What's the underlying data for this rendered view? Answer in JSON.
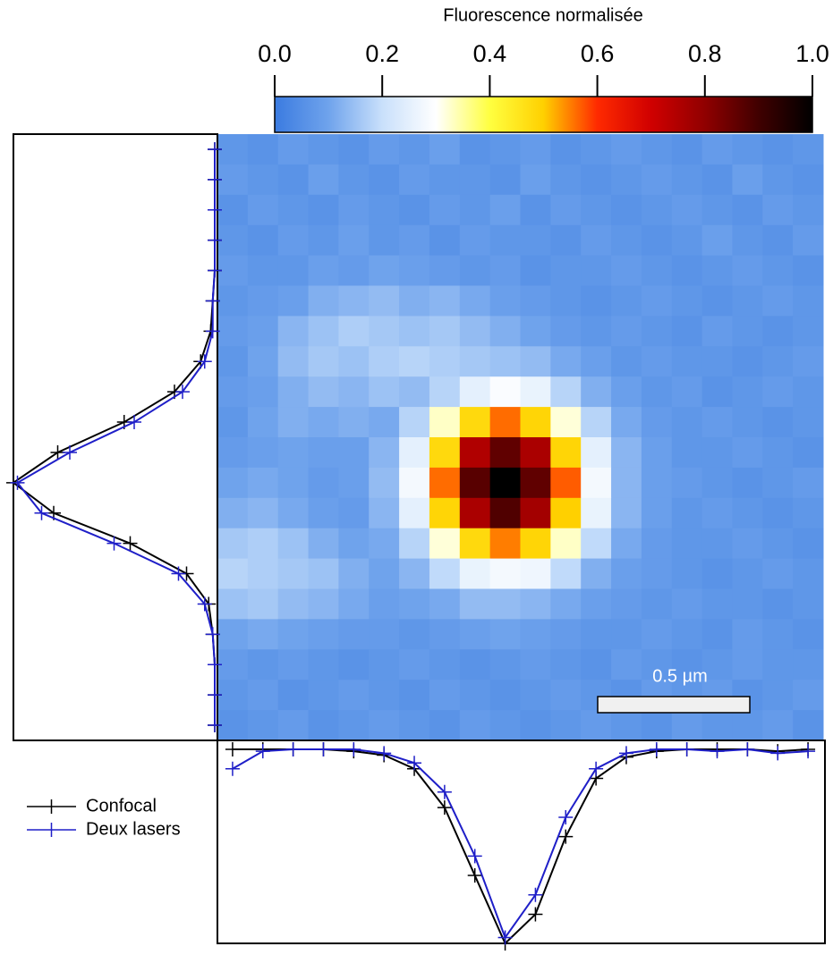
{
  "chart_data": [
    {
      "type": "heatmap",
      "colorbar_label": "Fluorescence normalisée",
      "colorbar_lim": [
        0,
        1
      ],
      "colorbar_ticks": [
        {
          "value": 0,
          "label": "0.0"
        },
        0.2,
        0.4,
        0.6,
        0.8,
        {
          "value": 1,
          "label": "1.0"
        }
      ],
      "colormap": [
        "#3b7be0",
        "#6fa3ec",
        "#c9e0fb",
        "#ffffff",
        "#ffff40",
        "#ffd000",
        "#ff2a00",
        "#d00000",
        "#900000",
        "#400000",
        "#000000"
      ],
      "annotation": "0.5 µm",
      "values": [
        [
          0.07,
          0.06,
          0.08,
          0.07,
          0.06,
          0.08,
          0.07,
          0.09,
          0.06,
          0.07,
          0.08,
          0.06,
          0.07,
          0.08,
          0.07,
          0.06,
          0.08,
          0.07,
          0.06,
          0.07
        ],
        [
          0.08,
          0.07,
          0.06,
          0.09,
          0.07,
          0.06,
          0.08,
          0.07,
          0.07,
          0.06,
          0.09,
          0.07,
          0.06,
          0.07,
          0.08,
          0.07,
          0.06,
          0.09,
          0.07,
          0.06
        ],
        [
          0.06,
          0.08,
          0.07,
          0.06,
          0.08,
          0.07,
          0.06,
          0.08,
          0.07,
          0.09,
          0.06,
          0.08,
          0.07,
          0.06,
          0.07,
          0.08,
          0.07,
          0.06,
          0.08,
          0.07
        ],
        [
          0.07,
          0.06,
          0.08,
          0.07,
          0.09,
          0.07,
          0.08,
          0.06,
          0.08,
          0.07,
          0.07,
          0.06,
          0.08,
          0.07,
          0.06,
          0.07,
          0.09,
          0.07,
          0.06,
          0.08
        ],
        [
          0.08,
          0.07,
          0.07,
          0.09,
          0.08,
          0.1,
          0.09,
          0.08,
          0.07,
          0.08,
          0.06,
          0.07,
          0.07,
          0.08,
          0.07,
          0.06,
          0.07,
          0.08,
          0.07,
          0.06
        ],
        [
          0.07,
          0.08,
          0.09,
          0.12,
          0.13,
          0.14,
          0.12,
          0.13,
          0.11,
          0.09,
          0.08,
          0.07,
          0.06,
          0.07,
          0.08,
          0.07,
          0.06,
          0.07,
          0.08,
          0.07
        ],
        [
          0.08,
          0.09,
          0.13,
          0.15,
          0.17,
          0.16,
          0.15,
          0.16,
          0.14,
          0.12,
          0.1,
          0.08,
          0.07,
          0.08,
          0.07,
          0.06,
          0.08,
          0.07,
          0.06,
          0.07
        ],
        [
          0.07,
          0.1,
          0.14,
          0.16,
          0.15,
          0.17,
          0.18,
          0.17,
          0.16,
          0.15,
          0.14,
          0.11,
          0.09,
          0.07,
          0.08,
          0.07,
          0.07,
          0.06,
          0.07,
          0.08
        ],
        [
          0.08,
          0.09,
          0.12,
          0.14,
          0.13,
          0.15,
          0.14,
          0.18,
          0.25,
          0.29,
          0.26,
          0.18,
          0.12,
          0.09,
          0.07,
          0.08,
          0.06,
          0.07,
          0.08,
          0.07
        ],
        [
          0.07,
          0.1,
          0.12,
          0.11,
          0.12,
          0.11,
          0.18,
          0.33,
          0.48,
          0.56,
          0.49,
          0.32,
          0.18,
          0.11,
          0.08,
          0.07,
          0.08,
          0.07,
          0.06,
          0.07
        ],
        [
          0.08,
          0.09,
          0.1,
          0.09,
          0.09,
          0.13,
          0.25,
          0.48,
          0.75,
          0.86,
          0.76,
          0.49,
          0.25,
          0.13,
          0.09,
          0.07,
          0.07,
          0.08,
          0.07,
          0.06
        ],
        [
          0.1,
          0.11,
          0.1,
          0.08,
          0.09,
          0.14,
          0.28,
          0.56,
          0.87,
          1.0,
          0.86,
          0.57,
          0.28,
          0.13,
          0.09,
          0.08,
          0.07,
          0.06,
          0.07,
          0.08
        ],
        [
          0.12,
          0.13,
          0.11,
          0.09,
          0.08,
          0.13,
          0.25,
          0.49,
          0.76,
          0.88,
          0.77,
          0.5,
          0.26,
          0.13,
          0.09,
          0.07,
          0.08,
          0.07,
          0.06,
          0.07
        ],
        [
          0.16,
          0.17,
          0.15,
          0.12,
          0.1,
          0.11,
          0.18,
          0.32,
          0.48,
          0.55,
          0.49,
          0.33,
          0.19,
          0.11,
          0.08,
          0.07,
          0.07,
          0.08,
          0.07,
          0.06
        ],
        [
          0.18,
          0.17,
          0.16,
          0.15,
          0.12,
          0.1,
          0.13,
          0.19,
          0.26,
          0.28,
          0.27,
          0.19,
          0.12,
          0.09,
          0.08,
          0.07,
          0.06,
          0.07,
          0.08,
          0.07
        ],
        [
          0.15,
          0.16,
          0.14,
          0.13,
          0.11,
          0.09,
          0.1,
          0.11,
          0.14,
          0.14,
          0.13,
          0.11,
          0.09,
          0.08,
          0.07,
          0.08,
          0.07,
          0.07,
          0.06,
          0.07
        ],
        [
          0.1,
          0.11,
          0.1,
          0.09,
          0.08,
          0.08,
          0.07,
          0.08,
          0.09,
          0.1,
          0.09,
          0.08,
          0.07,
          0.07,
          0.08,
          0.07,
          0.06,
          0.08,
          0.07,
          0.06
        ],
        [
          0.08,
          0.07,
          0.08,
          0.07,
          0.06,
          0.07,
          0.08,
          0.07,
          0.06,
          0.07,
          0.08,
          0.07,
          0.06,
          0.08,
          0.07,
          0.06,
          0.07,
          0.08,
          0.07,
          0.07
        ],
        [
          0.07,
          0.08,
          0.06,
          0.07,
          0.08,
          0.07,
          0.06,
          0.08,
          0.07,
          0.06,
          0.07,
          0.08,
          0.07,
          0.06,
          0.08,
          0.07,
          0.08,
          0.06,
          0.07,
          0.08
        ],
        [
          0.06,
          0.07,
          0.08,
          0.06,
          0.07,
          0.08,
          0.07,
          0.06,
          0.08,
          0.07,
          0.06,
          0.07,
          0.08,
          0.07,
          0.06,
          0.08,
          0.07,
          0.07,
          0.08,
          0.06
        ]
      ]
    },
    {
      "type": "profile",
      "orientation": "vertical",
      "xlim": [
        0,
        1
      ],
      "series": [
        {
          "name": "Confocal",
          "color": "#000000",
          "values": [
            0,
            0,
            0,
            0,
            0,
            0.01,
            0.02,
            0.07,
            0.2,
            0.45,
            0.78,
            1.0,
            0.8,
            0.42,
            0.14,
            0.03,
            0.01,
            0,
            0,
            0
          ]
        },
        {
          "name": "Deux lasers",
          "color": "#1f1fc8",
          "values": [
            0,
            0,
            0,
            0,
            0,
            0.01,
            0.01,
            0.05,
            0.16,
            0.4,
            0.72,
            0.98,
            0.86,
            0.5,
            0.18,
            0.05,
            0.01,
            0,
            0,
            0
          ]
        }
      ]
    },
    {
      "type": "profile",
      "orientation": "horizontal",
      "ylim": [
        0,
        1
      ],
      "series": [
        {
          "color": "#000000",
          "values": [
            0,
            0,
            0,
            0,
            0.01,
            0.03,
            0.1,
            0.3,
            0.65,
            1.0,
            0.85,
            0.45,
            0.15,
            0.04,
            0.01,
            0,
            0,
            0,
            0.01,
            0
          ]
        },
        {
          "color": "#1f1fc8",
          "values": [
            0.1,
            0.01,
            0,
            0,
            0,
            0.02,
            0.07,
            0.22,
            0.55,
            0.97,
            0.75,
            0.35,
            0.1,
            0.02,
            0,
            0,
            0.01,
            0,
            0.02,
            0.01
          ]
        }
      ]
    }
  ]
}
